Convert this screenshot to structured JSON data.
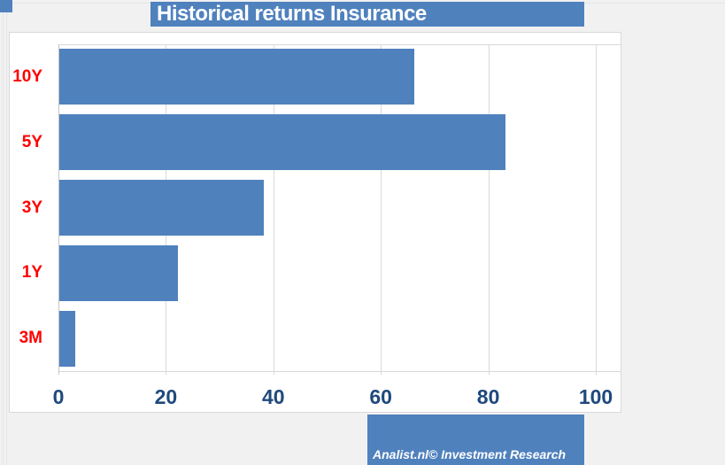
{
  "header": {
    "title": "Historical returns Insurance"
  },
  "footer": {
    "credit": "Analist.nl© Investment Research"
  },
  "colors": {
    "accent": "#4f81bd",
    "bar": "#4f81bd",
    "category_label": "#ff0000",
    "tick_label": "#1f497d",
    "gridline": "#d9d9d9",
    "panel_border": "#d9d9d9",
    "page_background": "#f1f1f2",
    "title_text": "#ffffff"
  },
  "chart_data": {
    "type": "bar",
    "orientation": "horizontal",
    "title": "Historical returns Insurance",
    "categories": [
      "10Y",
      "5Y",
      "3Y",
      "1Y",
      "3M"
    ],
    "values": [
      66,
      83,
      38,
      22,
      3
    ],
    "xlabel": "",
    "ylabel": "",
    "xticks": [
      0,
      20,
      40,
      60,
      80,
      100
    ],
    "xlim": [
      0,
      105
    ],
    "grid": true,
    "legend": "none"
  }
}
